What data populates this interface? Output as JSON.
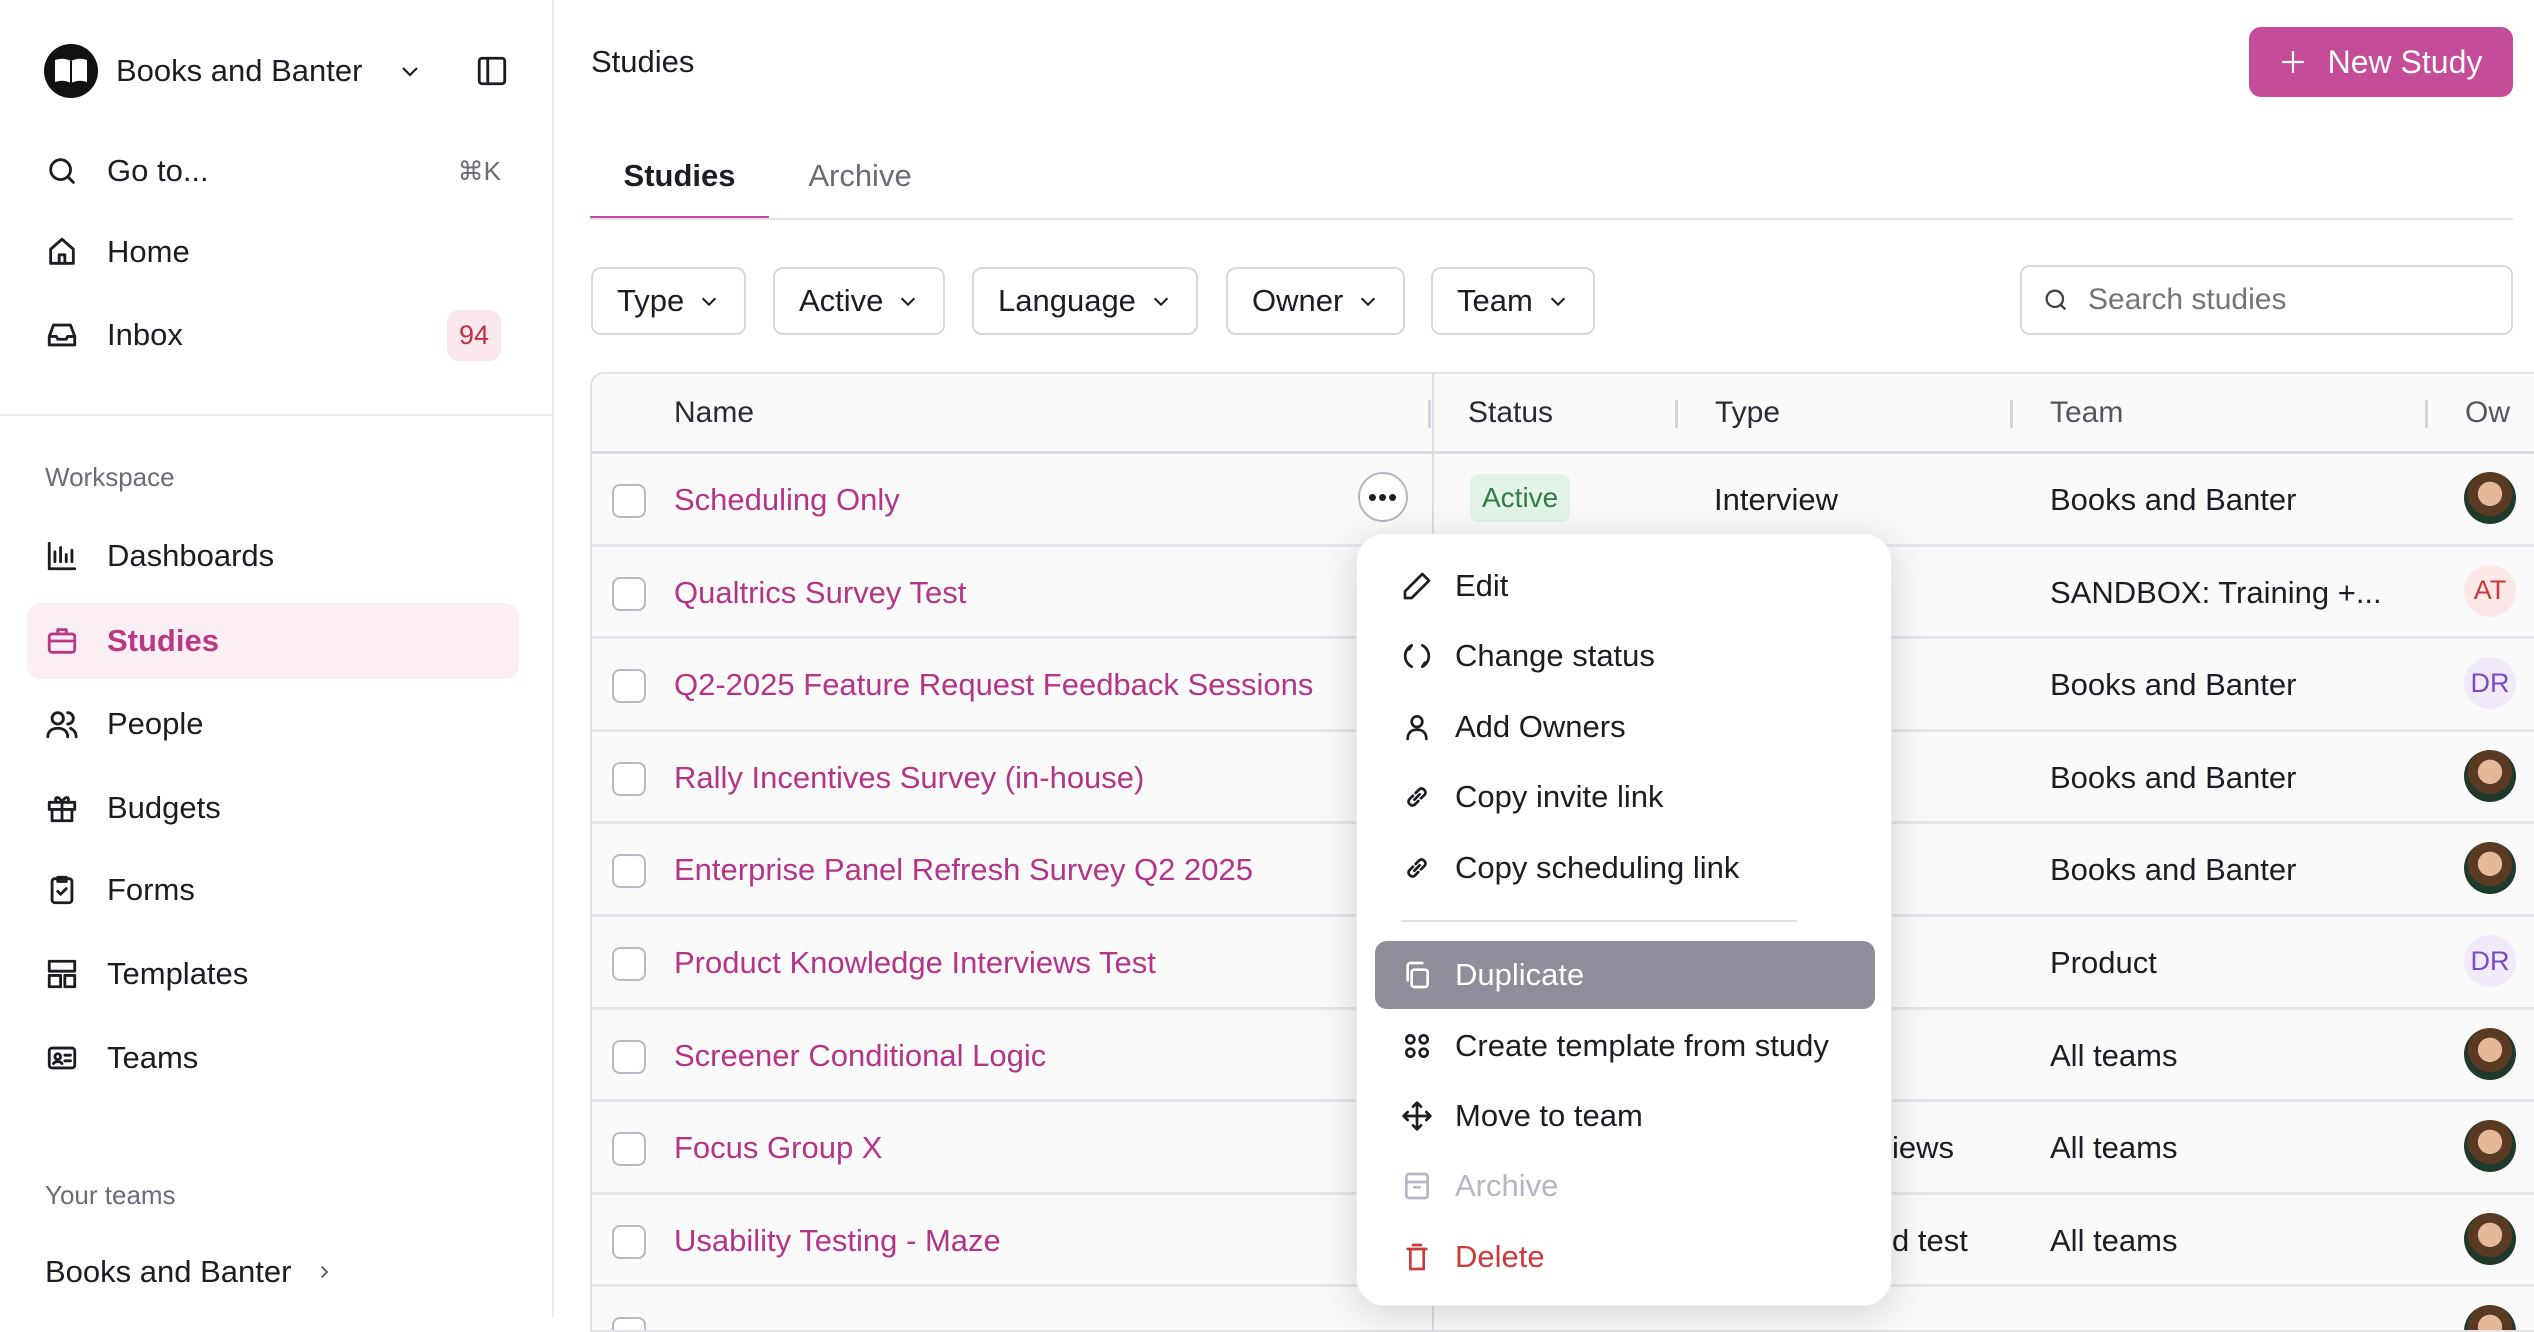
{
  "colors": {
    "accent": "#c54c99",
    "active_badge": "#2f7d4a",
    "danger": "#cc3b3b",
    "inbox_badge": "#c12f45"
  },
  "sidebar": {
    "workspace_name": "Books and Banter",
    "goto": {
      "label": "Go to...",
      "shortcut": "⌘K"
    },
    "home": "Home",
    "inbox": {
      "label": "Inbox",
      "count": "94"
    },
    "workspace_label": "Workspace",
    "items": [
      {
        "label": "Dashboards",
        "icon": "bar-chart-icon"
      },
      {
        "label": "Studies",
        "icon": "briefcase-icon",
        "active": true
      },
      {
        "label": "People",
        "icon": "users-icon"
      },
      {
        "label": "Budgets",
        "icon": "gift-icon"
      },
      {
        "label": "Forms",
        "icon": "clipboard-icon"
      },
      {
        "label": "Templates",
        "icon": "layout-icon"
      },
      {
        "label": "Teams",
        "icon": "id-card-icon"
      }
    ],
    "your_teams_label": "Your teams",
    "team": "Books and Banter"
  },
  "header": {
    "title": "Studies",
    "new_button": "New Study"
  },
  "tabs": [
    {
      "label": "Studies",
      "active": true
    },
    {
      "label": "Archive"
    }
  ],
  "filters": [
    "Type",
    "Active",
    "Language",
    "Owner",
    "Team"
  ],
  "search": {
    "placeholder": "Search studies",
    "value": ""
  },
  "table": {
    "columns": [
      "Name",
      "Status",
      "Type",
      "Team",
      "Ow"
    ],
    "rows": [
      {
        "name": "Scheduling Only",
        "status": "Active",
        "type": "Interview",
        "team": "Books and Banter",
        "owner": "photo"
      },
      {
        "name": "Qualtrics Survey Test",
        "type": "",
        "team": "SANDBOX: Training +...",
        "owner": "AT"
      },
      {
        "name": "Q2-2025 Feature Request Feedback Sessions",
        "type": "",
        "team": "Books and Banter",
        "owner": "DR"
      },
      {
        "name": "Rally Incentives Survey (in-house)",
        "type": "",
        "team": "Books and Banter",
        "owner": "photo"
      },
      {
        "name": "Enterprise Panel Refresh Survey Q2 2025",
        "type": "",
        "team": "Books and Banter",
        "owner": "photo"
      },
      {
        "name": "Product Knowledge Interviews Test",
        "type": "",
        "team": "Product",
        "owner": "DR"
      },
      {
        "name": "Screener Conditional Logic",
        "type": "",
        "team": "All teams",
        "owner": "photo"
      },
      {
        "name": "Focus Group X",
        "type": "iews",
        "team": "All teams",
        "owner": "photo"
      },
      {
        "name": "Usability Testing - Maze",
        "type": "d test",
        "team": "All teams",
        "owner": "photo"
      }
    ]
  },
  "context_menu": {
    "items": [
      {
        "label": "Edit",
        "icon": "pencil-icon"
      },
      {
        "label": "Change status",
        "icon": "refresh-icon"
      },
      {
        "label": "Add Owners",
        "icon": "user-icon"
      },
      {
        "label": "Copy invite link",
        "icon": "link-icon"
      },
      {
        "label": "Copy scheduling link",
        "icon": "link-icon"
      },
      {
        "label": "Duplicate",
        "icon": "copy-icon",
        "highlighted": true
      },
      {
        "label": "Create template from study",
        "icon": "grid-icon"
      },
      {
        "label": "Move to team",
        "icon": "move-icon"
      },
      {
        "label": "Archive",
        "icon": "archive-icon",
        "disabled": true
      },
      {
        "label": "Delete",
        "icon": "trash-icon",
        "danger": true
      }
    ]
  }
}
